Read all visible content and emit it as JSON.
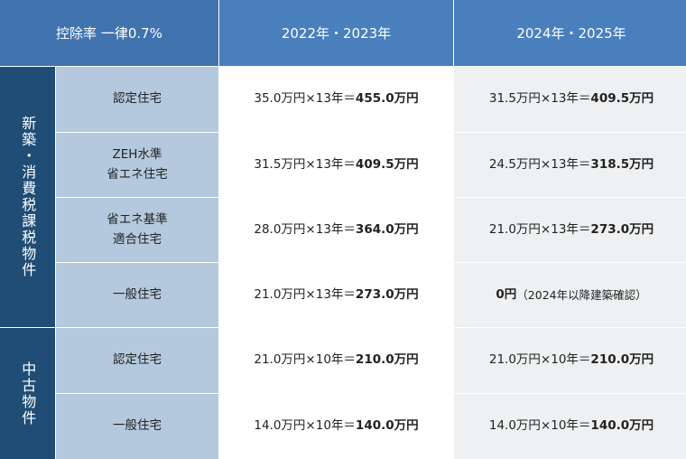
{
  "header": {
    "rate": "控除率 一律0.7%",
    "col_2022": "2022年・2023年",
    "col_2024": "2024年・2025年"
  },
  "groups": {
    "new": "新築・消費税課税物件",
    "used": "中古物件"
  },
  "rows": [
    {
      "type": "認定住宅",
      "v2022": "35.0万円×13年＝",
      "v2022_total": "455.0万円",
      "v2024": "31.5万円×13年＝",
      "v2024_total": "409.5万円"
    },
    {
      "type": "ZEH水準\n省エネ住宅",
      "v2022": "31.5万円×13年＝",
      "v2022_total": "409.5万円",
      "v2024": "24.5万円×13年＝",
      "v2024_total": "318.5万円"
    },
    {
      "type": "省エネ基準\n適合住宅",
      "v2022": "28.0万円×13年＝",
      "v2022_total": "364.0万円",
      "v2024": "21.0万円×13年＝",
      "v2024_total": "273.0万円"
    },
    {
      "type": "一般住宅",
      "v2022": "21.0万円×13年＝",
      "v2022_total": "273.0万円",
      "v2024_total": "0円",
      "v2024_note": "（2024年以降建築確認）"
    },
    {
      "type": "認定住宅",
      "v2022": "21.0万円×10年＝",
      "v2022_total": "210.0万円",
      "v2024": "21.0万円×10年＝",
      "v2024_total": "210.0万円"
    },
    {
      "type": "一般住宅",
      "v2022": "14.0万円×10年＝",
      "v2022_total": "140.0万円",
      "v2024": "14.0万円×10年＝",
      "v2024_total": "140.0万円"
    }
  ]
}
